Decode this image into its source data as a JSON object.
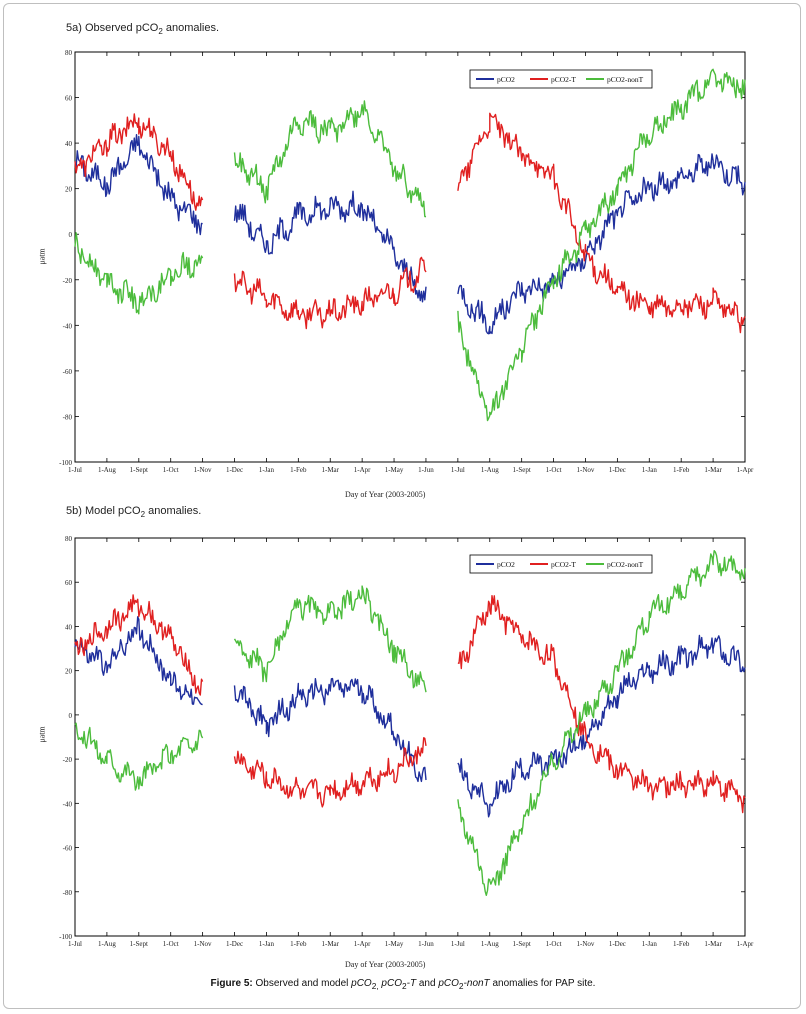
{
  "figure": {
    "caption_label": "Figure 5:",
    "caption_text_1": " Observed and model ",
    "caption_italic_1": "pCO",
    "caption_italic_1_sub": "2,",
    "caption_italic_2": " pCO",
    "caption_italic_2_sub": "2",
    "caption_italic_2_tail": "-T",
    "caption_text_2": " and ",
    "caption_italic_3": "pCO",
    "caption_italic_3_sub": "2",
    "caption_italic_3_tail": "-nonT",
    "caption_text_3": " anomalies for PAP site."
  },
  "panels": [
    {
      "title_prefix": "5a) Observed pCO",
      "title_sub": "2",
      "title_suffix": " anomalies.",
      "xlabel": "Day of Year (2003-2005)",
      "ylabel": "μatm"
    },
    {
      "title_prefix": "5b) Model pCO",
      "title_sub": "2",
      "title_suffix": " anomalies.",
      "xlabel": "Day of Year (2003-2005)",
      "ylabel": "μatm"
    }
  ],
  "chart_data": [
    {
      "type": "line",
      "title": "5a) Observed pCO2 anomalies.",
      "xlabel": "Day of Year (2003-2005)",
      "ylabel": "μatm",
      "ylim": [
        -100,
        80
      ],
      "yticks": [
        -100,
        -80,
        -60,
        -40,
        -20,
        0,
        20,
        40,
        60,
        80
      ],
      "xticks": [
        "1-Jul",
        "1-Aug",
        "1-Sept",
        "1-Oct",
        "1-Nov",
        "1-Dec",
        "1-Jan",
        "1-Feb",
        "1-Mar",
        "1-Apr",
        "1-May",
        "1-Jun",
        "1-Jul",
        "1-Aug",
        "1-Sept",
        "1-Oct",
        "1-Nov",
        "1-Dec",
        "1-Jan",
        "1-Feb",
        "1-Mar",
        "1-Apr"
      ],
      "legend_position": "top-right",
      "x": [
        0,
        1,
        2,
        3,
        4,
        4.5,
        5,
        6,
        7,
        8,
        9,
        10,
        11,
        11.5,
        12,
        13,
        14,
        15,
        16,
        17,
        18,
        19,
        20,
        21
      ],
      "series": [
        {
          "name": "pCO2",
          "color": "#1f2f9c",
          "values": [
            32,
            22,
            40,
            15,
            5,
            null,
            12,
            -5,
            8,
            12,
            12,
            -8,
            -30,
            null,
            -25,
            -40,
            -24,
            -22,
            -10,
            10,
            20,
            25,
            32,
            22
          ]
        },
        {
          "name": "pCO2-T",
          "color": "#e02020",
          "values": [
            28,
            40,
            50,
            35,
            10,
            null,
            -20,
            -28,
            -35,
            -35,
            -30,
            -25,
            -15,
            null,
            20,
            50,
            35,
            25,
            -10,
            -25,
            -32,
            -32,
            -30,
            -38
          ]
        },
        {
          "name": "pCO2-nonT",
          "color": "#4cbc3c",
          "values": [
            -5,
            -20,
            -30,
            -18,
            -10,
            null,
            32,
            20,
            50,
            45,
            55,
            30,
            10,
            null,
            -40,
            -80,
            -50,
            -20,
            0,
            20,
            45,
            55,
            70,
            64
          ]
        }
      ]
    },
    {
      "type": "line",
      "title": "5b) Model pCO2 anomalies.",
      "xlabel": "Day of Year (2003-2005)",
      "ylabel": "μatm",
      "ylim": [
        -100,
        80
      ],
      "yticks": [
        -100,
        -80,
        -60,
        -40,
        -20,
        0,
        20,
        40,
        60,
        80
      ],
      "xticks": [
        "1-Jul",
        "1-Aug",
        "1-Sept",
        "1-Oct",
        "1-Nov",
        "1-Dec",
        "1-Jan",
        "1-Feb",
        "1-Mar",
        "1-Apr",
        "1-May",
        "1-Jun",
        "1-Jul",
        "1-Aug",
        "1-Sept",
        "1-Oct",
        "1-Nov",
        "1-Dec",
        "1-Jan",
        "1-Feb",
        "1-Mar",
        "1-Apr"
      ],
      "legend_position": "top-right",
      "x": [
        0,
        1,
        2,
        3,
        4,
        4.5,
        5,
        6,
        7,
        8,
        9,
        10,
        11,
        11.5,
        12,
        13,
        14,
        15,
        16,
        17,
        18,
        19,
        20,
        21
      ],
      "series": [
        {
          "name": "pCO2",
          "color": "#1f2f9c",
          "values": [
            32,
            22,
            40,
            15,
            5,
            null,
            12,
            -5,
            8,
            12,
            12,
            -8,
            -30,
            null,
            -25,
            -40,
            -24,
            -22,
            -10,
            10,
            20,
            25,
            32,
            22
          ]
        },
        {
          "name": "pCO2-T",
          "color": "#e02020",
          "values": [
            28,
            40,
            50,
            35,
            10,
            null,
            -20,
            -28,
            -35,
            -35,
            -30,
            -25,
            -15,
            null,
            20,
            50,
            35,
            25,
            -10,
            -25,
            -32,
            -32,
            -30,
            -38
          ]
        },
        {
          "name": "pCO2-nonT",
          "color": "#4cbc3c",
          "values": [
            -5,
            -20,
            -30,
            -18,
            -10,
            null,
            32,
            20,
            50,
            45,
            55,
            30,
            10,
            null,
            -40,
            -80,
            -50,
            -20,
            0,
            20,
            45,
            55,
            70,
            64
          ]
        }
      ]
    }
  ]
}
